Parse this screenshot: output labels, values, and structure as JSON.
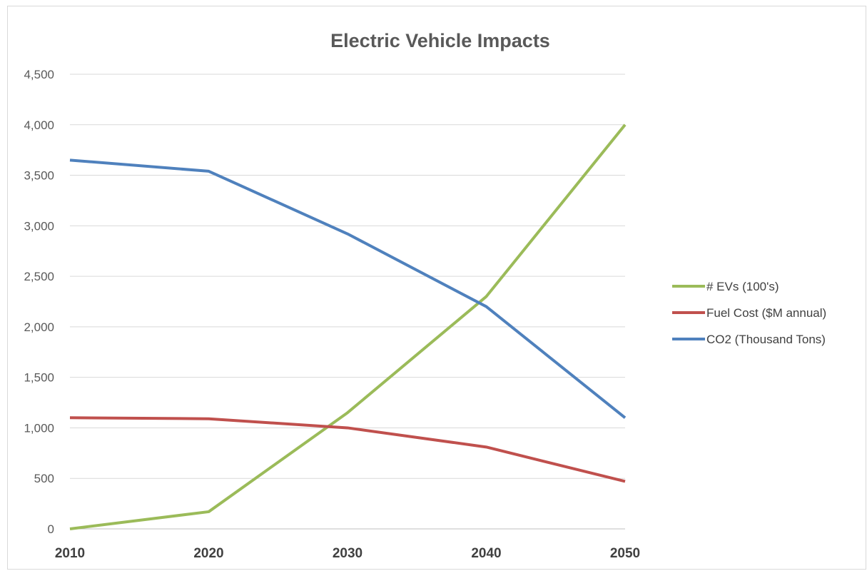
{
  "chart_data": {
    "type": "line",
    "title": "Electric Vehicle Impacts",
    "xlabel": "",
    "ylabel": "",
    "x": [
      "2010",
      "2020",
      "2030",
      "2040",
      "2050"
    ],
    "ylim": [
      0,
      4500
    ],
    "yticks": [
      "0",
      "500",
      "1,000",
      "1,500",
      "2,000",
      "2,500",
      "3,000",
      "3,500",
      "4,000",
      "4,500"
    ],
    "grid": true,
    "legend_position": "right",
    "series": [
      {
        "name": "# EVs (100's)",
        "color": "#9bbb59",
        "values": [
          0,
          170,
          1150,
          2300,
          4000
        ]
      },
      {
        "name": "Fuel Cost ($M annual)",
        "color": "#c0504d",
        "values": [
          1100,
          1090,
          1000,
          810,
          470
        ]
      },
      {
        "name": "CO2 (Thousand Tons)",
        "color": "#4f81bd",
        "values": [
          3650,
          3540,
          2920,
          2200,
          1100
        ]
      }
    ]
  }
}
